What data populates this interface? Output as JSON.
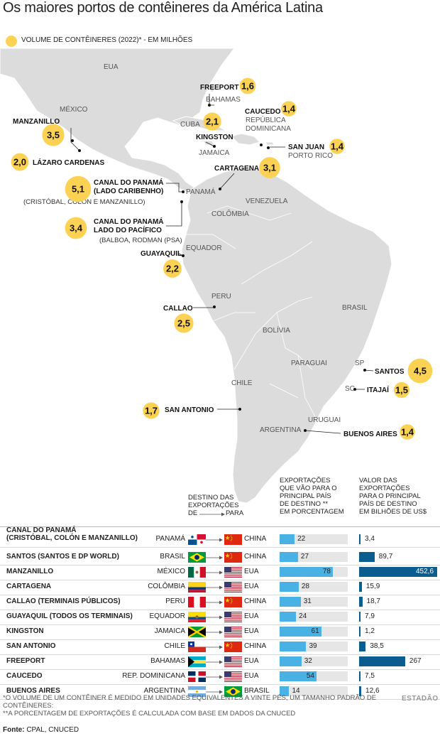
{
  "title": "Os maiores portos de contêineres da América Latina",
  "legend": "VOLUME DE CONTÊINERES (2022)* - EM MILHÕES",
  "colors": {
    "bubble": "#fcd255",
    "land": "#dcdcdc",
    "percent_bar": "#4ab1e4",
    "value_bar": "#0b5c8f",
    "bar_background": "#e6e6e6"
  },
  "map": {
    "countries": [
      "EUA",
      "MÉXICO",
      "CUBA",
      "BAHAMAS",
      "JAMAICA",
      "REPÚBLICA",
      "DOMINICANA",
      "PORTO RICO",
      "PANAMÁ",
      "VENEZUELA",
      "COLÔMBIA",
      "EQUADOR",
      "PERU",
      "BRASIL",
      "BOLÍVIA",
      "PARAGUAI",
      "CHILE",
      "ARGENTINA",
      "URUGUAI",
      "SP",
      "SC"
    ],
    "ports": [
      {
        "name": "FREEPORT",
        "volume": "1,6"
      },
      {
        "name": "MANZANILLO",
        "volume": "3,5"
      },
      {
        "name": "LÁZARO CARDENAS",
        "volume": "2,0"
      },
      {
        "name": "CAUCEDO",
        "volume": "1,4"
      },
      {
        "name": "KINGSTON",
        "volume": "2,1"
      },
      {
        "name": "SAN JUAN",
        "volume": "1,4"
      },
      {
        "name": "CARTAGENA",
        "volume": "3,1"
      },
      {
        "name": "CANAL DO PANAMÁ",
        "sub1": "(LADO CARIBENHO)",
        "sub2": "(CRISTÓBAL, COLÓN E MANZANILLO)",
        "volume": "5,1"
      },
      {
        "name": "CANAL DO PANAMÁ",
        "sub1": "LADO DO PACÍFICO",
        "sub2": "(BALBOA, RODMAN (PSA)",
        "volume": "3,4"
      },
      {
        "name": "GUAYAQUIL",
        "volume": "2,2"
      },
      {
        "name": "CALLAO",
        "volume": "2,5"
      },
      {
        "name": "SANTOS",
        "volume": "4,5"
      },
      {
        "name": "ITAJAÍ",
        "volume": "1,5"
      },
      {
        "name": "SAN ANTONIO",
        "volume": "1,7"
      },
      {
        "name": "BUENOS AIRES",
        "volume": "1,4"
      }
    ]
  },
  "table": {
    "dest_header": [
      "DESTINO DAS",
      "EXPORTAÇÕES"
    ],
    "de": "DE",
    "para": "PARA",
    "pct_header": [
      "EXPORTAÇÕES",
      "QUE VÃO PARA O",
      "PRINCIPAL PAÍS",
      "DE DESTINO **",
      "EM PORCENTAGEM"
    ],
    "val_header": [
      "VALOR DAS",
      "EXPORTAÇÕES",
      "PARA O PRINCIPAL",
      "PAÍS DE DESTINO",
      "EM BILHÕES DE US$"
    ]
  },
  "chart_data": {
    "type": "bar",
    "categories": [
      "CANAL DO PANAMÁ",
      "SANTOS",
      "MANZANILLO",
      "CARTAGENA",
      "CALLAO",
      "GUAYAQUIL",
      "KINGSTON",
      "SAN ANTONIO",
      "FREEPORT",
      "CAUCEDO",
      "BUENOS AIRES"
    ],
    "category_details": [
      "(CRISTÓBAL, COLÓN E MANZANILLO)",
      "(SANTOS E DP WORLD)",
      "",
      "",
      "(TERMINAIS PÚBLICOS)",
      "(TODOS OS TERMINAIS)",
      "",
      "",
      "",
      "",
      ""
    ],
    "from": [
      "PANAMÁ",
      "BRASIL",
      "MÉXICO",
      "COLÔMBIA",
      "PERU",
      "EQUADOR",
      "JAMAICA",
      "CHILE",
      "BAHAMAS",
      "REP. DOMINICANA",
      "ARGENTINA"
    ],
    "to": [
      "CHINA",
      "CHINA",
      "EUA",
      "EUA",
      "CHINA",
      "EUA",
      "EUA",
      "CHINA",
      "EUA",
      "EUA",
      "BRASIL"
    ],
    "series": [
      {
        "values": [
          22,
          27,
          78,
          28,
          31,
          24,
          61,
          39,
          32,
          54,
          14
        ],
        "labels": [
          "22",
          "27",
          "78",
          "28",
          "31",
          "24",
          "61",
          "39",
          "32",
          "54",
          "14"
        ]
      },
      {
        "values": [
          3.4,
          89.7,
          452.6,
          15.9,
          18.7,
          7.9,
          1.2,
          38.5,
          267,
          7.5,
          12.6
        ],
        "labels": [
          "3,4",
          "89,7",
          "452,6",
          "15,9",
          "18,7",
          "7,9",
          "1,2",
          "38,5",
          "267",
          "7,5",
          "12,6"
        ]
      }
    ],
    "ylim_percent": [
      0,
      100
    ]
  },
  "notes": [
    "*O VOLUME DE UM CONTÊINER É MEDIDO EM UNIDADES EQUIVALENTES A VINTE PÉS, UM TAMANHO PADRÃO DE CONTÊINERES:",
    "**A PORCENTAGEM DE EXPORTAÇÕES É CALCULADA COM BASE EM DADOS DA CNUCED"
  ],
  "source_label": "Fonte:",
  "source": "CPAL, CNUCED",
  "credit": "ESTADÃO"
}
